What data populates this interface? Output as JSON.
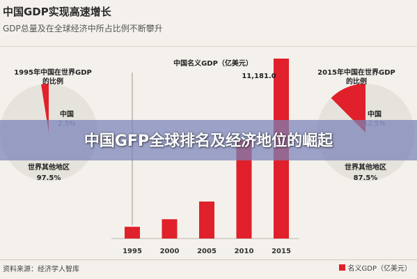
{
  "header": {
    "title": "中国GDP实现高速增长",
    "subtitle": "GDP总量及在全球经济中所占比例不断攀升"
  },
  "overlay": {
    "banner_text": "中国GFP全球排名及经济地位的崛起"
  },
  "footer": {
    "source": "资料来源：经济学人智库",
    "legend_label": "名义GDP（亿美元）"
  },
  "colors": {
    "bar": "#e0202a",
    "pie_china": "#e0202a",
    "pie_world": "#e6e3dc",
    "pie_world_1995": "#e6e3dc"
  },
  "chart_data": [
    {
      "type": "bar",
      "title": "中国名义GDP（亿美元）",
      "categories": [
        "1995",
        "2000",
        "2005",
        "2010",
        "2015"
      ],
      "series": [
        {
          "name": "名义GDP（亿美元）",
          "values": [
            730,
            1200,
            2300,
            6100,
            11181.0
          ]
        }
      ],
      "data_labels": {
        "2015": "11,181.0"
      },
      "ylim": [
        0,
        11181.0
      ],
      "grid": false
    },
    {
      "type": "pie",
      "title": "1995年中国在世界GDP的比例",
      "slices": [
        {
          "label": "中国",
          "value": 2.5,
          "text": "2.5%"
        },
        {
          "label": "世界其他地区",
          "value": 97.5,
          "text": "97.5%"
        }
      ]
    },
    {
      "type": "pie",
      "title": "2015年中国在世界GDP的比例",
      "slices": [
        {
          "label": "中国",
          "value": 12.5,
          "text": "12.5%"
        },
        {
          "label": "世界其他地区",
          "value": 87.5,
          "text": "87.5%"
        }
      ]
    }
  ]
}
